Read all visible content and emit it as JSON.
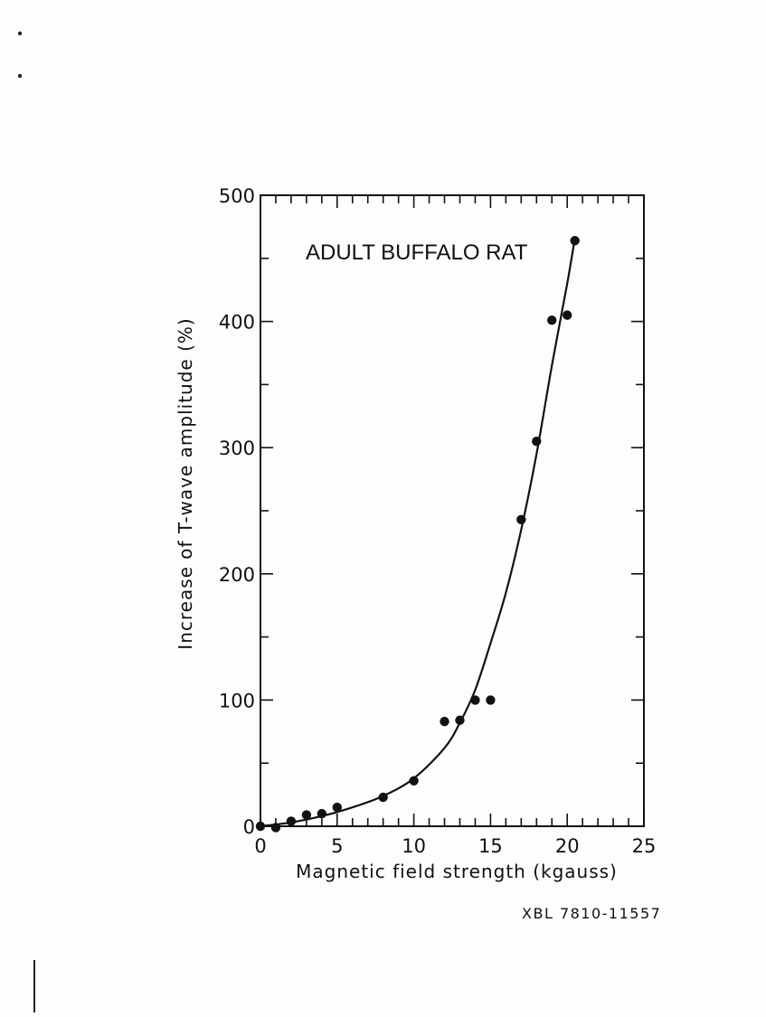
{
  "chart_data": {
    "type": "scatter",
    "title": "ADULT BUFFALO RAT",
    "xlabel": "Magnetic field strength (kgauss)",
    "ylabel": "Increase of T-wave amplitude (%)",
    "xlim": [
      0,
      25
    ],
    "ylim": [
      0,
      500
    ],
    "x_ticks": [
      "0",
      "5",
      "10",
      "15",
      "20",
      "25"
    ],
    "y_ticks": [
      "0",
      "100",
      "200",
      "300",
      "400",
      "500"
    ],
    "grid": false,
    "series": [
      {
        "kind": "points",
        "x": [
          0,
          1,
          2,
          3,
          4,
          5,
          8,
          10,
          12,
          13,
          14,
          15,
          17,
          18,
          19,
          20,
          20.5
        ],
        "y": [
          0,
          -1,
          4,
          9,
          10,
          15,
          23,
          36,
          83,
          84,
          100,
          100,
          243,
          305,
          401,
          405,
          464
        ]
      },
      {
        "kind": "fit-curve",
        "x": [
          0,
          2,
          4,
          6,
          8,
          10,
          12,
          13,
          14,
          15,
          16,
          17,
          18,
          19,
          20,
          20.5
        ],
        "y": [
          0,
          3,
          8,
          15,
          24,
          38,
          62,
          82,
          108,
          145,
          185,
          235,
          295,
          365,
          430,
          466
        ]
      }
    ]
  },
  "catalog_number": "XBL 7810-11557"
}
